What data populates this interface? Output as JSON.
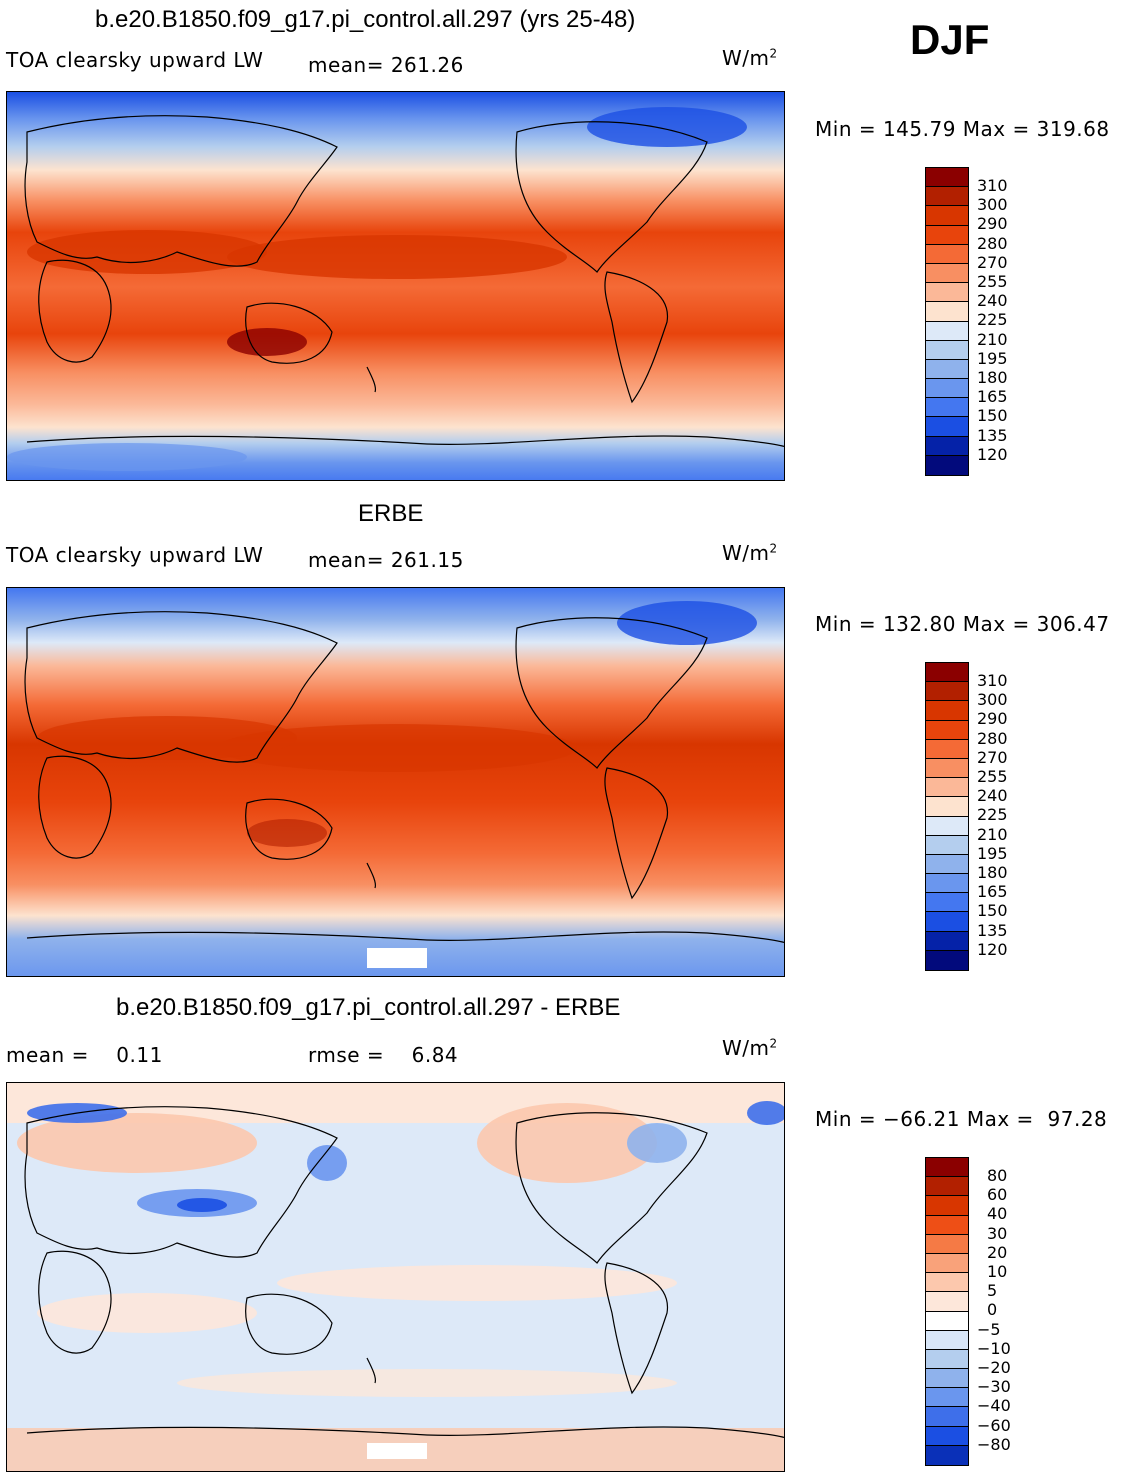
{
  "season": "DJF",
  "units": "W/m",
  "units_sup": "2",
  "panels": [
    {
      "title": "b.e20.B1850.f09_g17.pi_control.all.297 (yrs 25-48)",
      "left_label": "TOA clearsky upward LW",
      "mid_label": "mean= 261.26",
      "minmax": "Min = 145.79 Max = 319.68",
      "style": "abs",
      "levels": [
        "310",
        "300",
        "290",
        "280",
        "270",
        "255",
        "240",
        "225",
        "210",
        "195",
        "180",
        "165",
        "150",
        "135",
        "120"
      ]
    },
    {
      "title": "ERBE",
      "left_label": "TOA clearsky upward LW",
      "mid_label": "mean= 261.15",
      "minmax": "Min = 132.80 Max = 306.47",
      "style": "abs",
      "levels": [
        "310",
        "300",
        "290",
        "280",
        "270",
        "255",
        "240",
        "225",
        "210",
        "195",
        "180",
        "165",
        "150",
        "135",
        "120"
      ]
    },
    {
      "title": "b.e20.B1850.f09_g17.pi_control.all.297 - ERBE",
      "left_label": "mean =    0.11",
      "mid_label": "rmse =    6.84",
      "minmax": "Min = −66.21 Max =  97.28",
      "style": "diff",
      "levels": [
        "80",
        "60",
        "40",
        "30",
        "20",
        "10",
        "5",
        "0",
        "−5",
        "−10",
        "−20",
        "−30",
        "−40",
        "−60",
        "−80"
      ]
    }
  ],
  "colors": {
    "abs_scale": [
      "#8b0000",
      "#b22000",
      "#d83600",
      "#e8440c",
      "#f46a36",
      "#f88f62",
      "#fbb898",
      "#fde3cf",
      "#dde9f8",
      "#b4ceee",
      "#8fb2ec",
      "#6a96ee",
      "#4477f0",
      "#1b4fe3",
      "#0522a8",
      "#020a7c"
    ],
    "diff_scale": [
      "#8b0000",
      "#b22000",
      "#d83600",
      "#ee4f16",
      "#f57a45",
      "#f9a27a",
      "#fcc8ad",
      "#fde7da",
      "#ffffff",
      "#d8e6f8",
      "#b4ceee",
      "#8fb2ec",
      "#6a96ee",
      "#3e6fea",
      "#1b4fe3",
      "#0a30b8"
    ]
  }
}
